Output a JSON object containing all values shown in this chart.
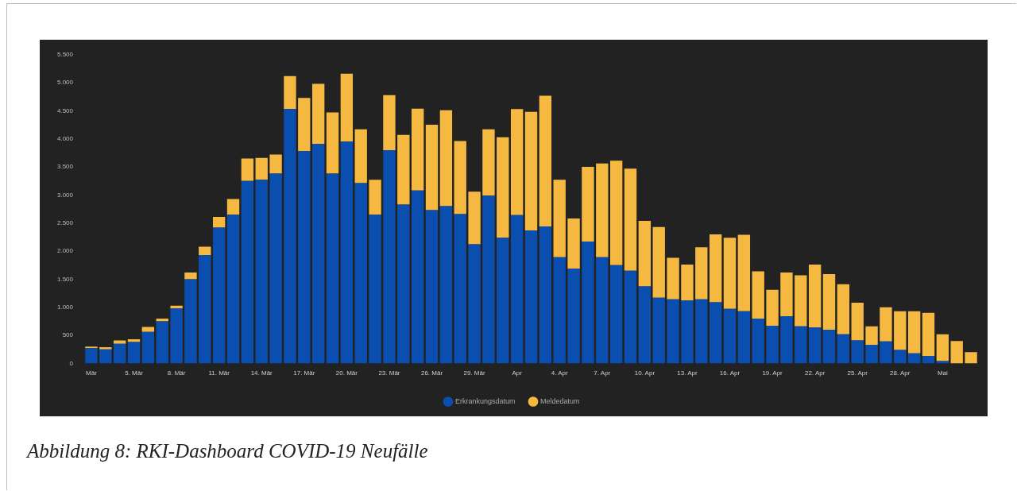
{
  "chart_data": {
    "type": "bar",
    "stacked": true,
    "legend": "bottom",
    "categories": [
      "Mär",
      null,
      null,
      "5. Mär",
      null,
      null,
      "8. Mär",
      null,
      null,
      "11. Mär",
      null,
      null,
      "14. Mär",
      null,
      null,
      "17. Mär",
      null,
      null,
      "20. Mär",
      null,
      null,
      "23. Mär",
      null,
      null,
      "26. Mär",
      null,
      null,
      "29. Mär",
      null,
      null,
      "Apr",
      null,
      null,
      "4. Apr",
      null,
      null,
      "7. Apr",
      null,
      null,
      "10. Apr",
      null,
      null,
      "13. Apr",
      null,
      null,
      "16. Apr",
      null,
      null,
      "19. Apr",
      null,
      null,
      "22. Apr",
      null,
      null,
      "25. Apr",
      null,
      null,
      "28. Apr",
      null,
      null,
      "Mai",
      null,
      null
    ],
    "series": [
      {
        "name": "Erkrankungsdatum",
        "color": "#0a4fb0",
        "values": [
          270,
          250,
          350,
          380,
          560,
          750,
          980,
          1500,
          1930,
          2420,
          2650,
          3250,
          3270,
          3380,
          4530,
          3780,
          3910,
          3380,
          3950,
          3210,
          2650,
          3800,
          2830,
          3080,
          2730,
          2800,
          2660,
          2120,
          2990,
          2240,
          2640,
          2370,
          2440,
          1890,
          1690,
          2170,
          1890,
          1750,
          1650,
          1370,
          1170,
          1140,
          1120,
          1140,
          1090,
          970,
          930,
          800,
          670,
          840,
          660,
          640,
          600,
          520,
          410,
          330,
          390,
          240,
          180,
          130,
          40,
          0,
          0
        ]
      },
      {
        "name": "Meldedatum",
        "color": "#f5b942",
        "values": [
          30,
          40,
          60,
          50,
          90,
          50,
          50,
          120,
          150,
          190,
          280,
          400,
          390,
          340,
          590,
          950,
          1070,
          1090,
          1210,
          960,
          620,
          980,
          1240,
          1460,
          1520,
          1710,
          1300,
          940,
          1180,
          1790,
          1890,
          2110,
          2330,
          1380,
          890,
          1330,
          1670,
          1860,
          1820,
          1170,
          1260,
          740,
          640,
          930,
          1210,
          1270,
          1360,
          840,
          640,
          780,
          910,
          1120,
          990,
          890,
          670,
          330,
          610,
          690,
          750,
          770,
          480,
          400,
          200
        ]
      }
    ],
    "ylim": [
      0,
      5500
    ],
    "yticks": [
      0,
      500,
      {
        "value": 1000,
        "label": "1.000"
      },
      {
        "value": 1500,
        "label": "1.500"
      },
      {
        "value": 2000,
        "label": "2.000"
      },
      {
        "value": 2500,
        "label": "2.500"
      },
      {
        "value": 3000,
        "label": "3.000"
      },
      {
        "value": 3500,
        "label": "3.500"
      },
      {
        "value": 4000,
        "label": "4.000"
      },
      {
        "value": 4500,
        "label": "4.500"
      },
      {
        "value": 5000,
        "label": "5.000"
      },
      {
        "value": 5500,
        "label": "5.500"
      }
    ],
    "annotations": [
      "Abbildung 8: RKI-Dashboard COVID-19 Neufälle"
    ]
  }
}
